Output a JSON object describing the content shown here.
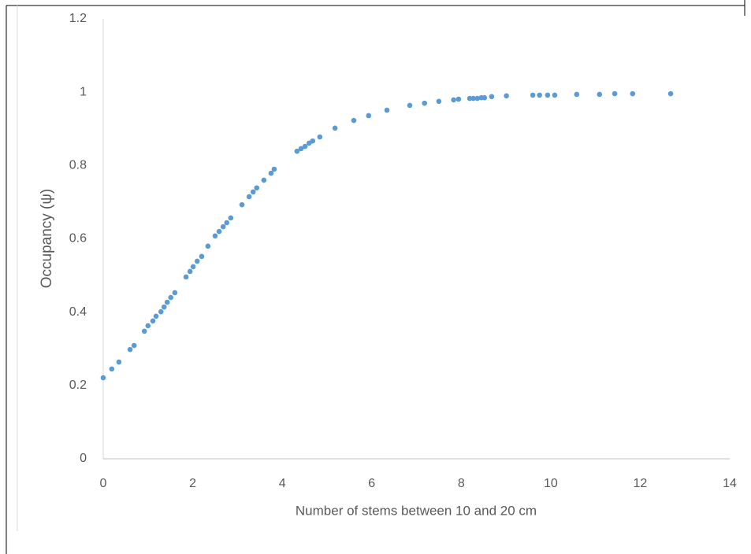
{
  "chart_data": {
    "type": "scatter",
    "x_label": "Number of stems between 10 and 20 cm",
    "y_label": "Occupancy (ψ)",
    "series": [
      {
        "color": "#5b9bd5",
        "x": [
          0,
          0.19,
          0.35,
          0.6,
          0.69,
          0.92,
          1.0,
          1.11,
          1.18,
          1.29,
          1.36,
          1.43,
          1.51,
          1.6,
          1.85,
          1.94,
          2.01,
          2.1,
          2.2,
          2.34,
          2.5,
          2.59,
          2.68,
          2.76,
          2.85,
          3.1,
          3.26,
          3.35,
          3.43,
          3.59,
          3.75,
          3.82,
          4.33,
          4.42,
          4.51,
          4.6,
          4.68,
          4.84,
          5.18,
          5.6,
          5.93,
          6.34,
          6.85,
          7.18,
          7.5,
          7.83,
          7.94,
          8.19,
          8.27,
          8.36,
          8.45,
          8.52,
          8.68,
          9.01,
          9.6,
          9.75,
          9.93,
          10.09,
          10.58,
          11.09,
          11.43,
          11.83,
          12.68
        ],
        "values": [
          0.221,
          0.245,
          0.264,
          0.298,
          0.309,
          0.348,
          0.363,
          0.376,
          0.389,
          0.401,
          0.414,
          0.427,
          0.44,
          0.453,
          0.496,
          0.511,
          0.524,
          0.539,
          0.552,
          0.58,
          0.608,
          0.62,
          0.633,
          0.644,
          0.657,
          0.693,
          0.715,
          0.728,
          0.739,
          0.76,
          0.779,
          0.79,
          0.839,
          0.846,
          0.852,
          0.861,
          0.867,
          0.878,
          0.902,
          0.923,
          0.936,
          0.951,
          0.964,
          0.97,
          0.975,
          0.979,
          0.981,
          0.983,
          0.983,
          0.983,
          0.985,
          0.985,
          0.988,
          0.99,
          0.992,
          0.992,
          0.992,
          0.992,
          0.994,
          0.994,
          0.996,
          0.996,
          0.996
        ]
      }
    ],
    "xlim": [
      0,
      14
    ],
    "xticks": [
      0,
      2,
      4,
      6,
      8,
      10,
      12,
      14
    ],
    "ylim": [
      0,
      1.2
    ],
    "yticks": [
      0,
      0.2,
      0.4,
      0.6,
      0.8,
      1,
      1.2
    ]
  }
}
